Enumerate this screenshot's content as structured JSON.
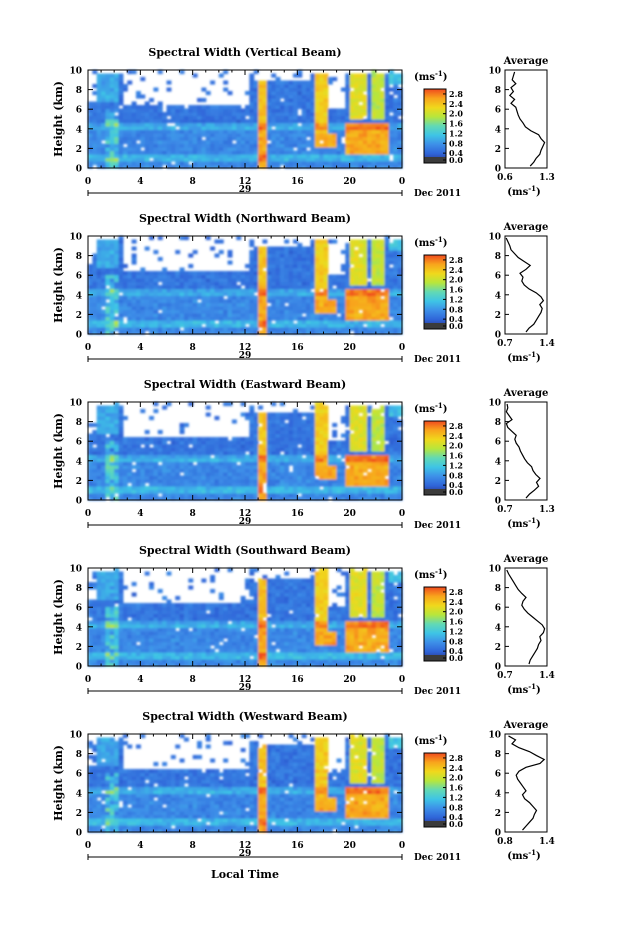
{
  "colorscale": {
    "stops": [
      "#2c2f7e",
      "#2f64d8",
      "#3d8fe8",
      "#3ec4e6",
      "#62d9b4",
      "#b7e63c",
      "#f0d81c",
      "#f8a41c",
      "#f04a1e"
    ],
    "low_color": "#3b3b3b"
  },
  "chart_data": [
    {
      "type": "heatmap",
      "title": "Spectral Width (Vertical Beam)",
      "ylabel": "Height (km)",
      "xlabel": "",
      "unit_label": "(ms",
      "unit_exp": "-1",
      "x_ticks": [
        "0",
        "4",
        "8",
        "12",
        "16",
        "20",
        "0"
      ],
      "xlim": [
        0,
        24
      ],
      "y_ticks": [
        "0",
        "2",
        "4",
        "6",
        "8",
        "10"
      ],
      "ylim": [
        0,
        10
      ],
      "date_day": "29",
      "date_label": "Dec 2011",
      "colorbar_ticks": [
        "0.0",
        "0.4",
        "0.8",
        "1.2",
        "1.6",
        "2.0",
        "2.4",
        "2.8"
      ],
      "colorbar_range": [
        0,
        3
      ],
      "average": {
        "title": "Average",
        "xlabel": "(ms",
        "xlabel_exp": "-1",
        "x_ticks": [
          "0.6",
          "1.3"
        ],
        "xlim": [
          0.6,
          1.3
        ],
        "height": [
          0.2,
          0.6,
          1.0,
          1.4,
          1.8,
          2.2,
          2.6,
          3.0,
          3.4,
          3.8,
          4.2,
          4.6,
          5.0,
          5.4,
          5.8,
          6.2,
          6.6,
          7.0,
          7.4,
          7.8,
          8.2,
          8.6,
          9.0,
          9.4,
          9.8
        ],
        "value": [
          1.02,
          1.08,
          1.12,
          1.18,
          1.2,
          1.23,
          1.26,
          1.2,
          1.16,
          1.03,
          0.94,
          0.9,
          0.85,
          0.82,
          0.8,
          0.78,
          0.7,
          0.76,
          0.68,
          0.74,
          0.7,
          0.78,
          0.72,
          0.74,
          0.76
        ]
      }
    },
    {
      "type": "heatmap",
      "title": "Spectral Width (Northward Beam)",
      "ylabel": "Height (km)",
      "xlabel": "",
      "unit_label": "(ms",
      "unit_exp": "-1",
      "x_ticks": [
        "0",
        "4",
        "8",
        "12",
        "16",
        "20",
        "0"
      ],
      "xlim": [
        0,
        24
      ],
      "y_ticks": [
        "0",
        "2",
        "4",
        "6",
        "8",
        "10"
      ],
      "ylim": [
        0,
        10
      ],
      "date_day": "29",
      "date_label": "Dec 2011",
      "colorbar_ticks": [
        "0.0",
        "0.4",
        "0.8",
        "1.2",
        "1.6",
        "2.0",
        "2.4",
        "2.8"
      ],
      "colorbar_range": [
        0,
        3
      ],
      "average": {
        "title": "Average",
        "xlabel": "(ms",
        "xlabel_exp": "-1",
        "x_ticks": [
          "0.7",
          "1.4"
        ],
        "xlim": [
          0.7,
          1.4
        ],
        "height": [
          0.2,
          0.6,
          1.0,
          1.4,
          1.8,
          2.2,
          2.6,
          3.0,
          3.4,
          3.8,
          4.2,
          4.6,
          5.0,
          5.4,
          5.8,
          6.2,
          6.6,
          7.0,
          7.4,
          7.8,
          8.2,
          8.6,
          9.0,
          9.4,
          9.8
        ],
        "value": [
          1.05,
          1.1,
          1.18,
          1.22,
          1.26,
          1.3,
          1.32,
          1.28,
          1.34,
          1.3,
          1.22,
          1.1,
          1.02,
          0.98,
          1.0,
          0.95,
          1.05,
          1.12,
          1.02,
          0.92,
          0.86,
          0.8,
          0.78,
          0.75,
          0.72
        ]
      }
    },
    {
      "type": "heatmap",
      "title": "Spectral Width (Eastward Beam)",
      "ylabel": "Height (km)",
      "xlabel": "",
      "unit_label": "(ms",
      "unit_exp": "-1",
      "x_ticks": [
        "0",
        "4",
        "8",
        "12",
        "16",
        "20",
        "0"
      ],
      "xlim": [
        0,
        24
      ],
      "y_ticks": [
        "0",
        "2",
        "4",
        "6",
        "8",
        "10"
      ],
      "ylim": [
        0,
        10
      ],
      "date_day": "29",
      "date_label": "Dec 2011",
      "colorbar_ticks": [
        "0.0",
        "0.4",
        "0.8",
        "1.2",
        "1.6",
        "2.0",
        "2.4",
        "2.8"
      ],
      "colorbar_range": [
        0,
        3
      ],
      "average": {
        "title": "Average",
        "xlabel": "(ms",
        "xlabel_exp": "-1",
        "x_ticks": [
          "0.7",
          "1.3"
        ],
        "xlim": [
          0.7,
          1.3
        ],
        "height": [
          0.2,
          0.6,
          1.0,
          1.4,
          1.8,
          2.2,
          2.6,
          3.0,
          3.4,
          3.8,
          4.2,
          4.6,
          5.0,
          5.4,
          5.8,
          6.2,
          6.6,
          7.0,
          7.4,
          7.8,
          8.2,
          8.6,
          9.0,
          9.4,
          9.8
        ],
        "value": [
          1.0,
          1.05,
          1.12,
          1.18,
          1.15,
          1.2,
          1.14,
          1.1,
          1.08,
          1.02,
          0.98,
          0.95,
          0.92,
          0.9,
          0.86,
          0.84,
          0.86,
          0.8,
          0.74,
          0.72,
          0.8,
          0.76,
          0.72,
          0.74,
          0.73
        ]
      }
    },
    {
      "type": "heatmap",
      "title": "Spectral Width (Southward Beam)",
      "ylabel": "Height (km)",
      "xlabel": "",
      "unit_label": "(ms",
      "unit_exp": "-1",
      "x_ticks": [
        "0",
        "4",
        "8",
        "12",
        "16",
        "20",
        "0"
      ],
      "xlim": [
        0,
        24
      ],
      "y_ticks": [
        "0",
        "2",
        "4",
        "6",
        "8",
        "10"
      ],
      "ylim": [
        0,
        10
      ],
      "date_day": "29",
      "date_label": "Dec 2011",
      "colorbar_ticks": [
        "0.0",
        "0.4",
        "0.8",
        "1.2",
        "1.6",
        "2.0",
        "2.4",
        "2.8"
      ],
      "colorbar_range": [
        0,
        3
      ],
      "average": {
        "title": "Average",
        "xlabel": "(ms",
        "xlabel_exp": "-1",
        "x_ticks": [
          "0.7",
          "1.4"
        ],
        "xlim": [
          0.7,
          1.4
        ],
        "height": [
          0.2,
          0.6,
          1.0,
          1.4,
          1.8,
          2.2,
          2.6,
          3.0,
          3.4,
          3.8,
          4.2,
          4.6,
          5.0,
          5.4,
          5.8,
          6.2,
          6.6,
          7.0,
          7.4,
          7.8,
          8.2,
          8.6,
          9.0,
          9.4,
          9.8
        ],
        "value": [
          1.1,
          1.12,
          1.16,
          1.2,
          1.24,
          1.26,
          1.3,
          1.28,
          1.34,
          1.36,
          1.32,
          1.24,
          1.16,
          1.08,
          1.02,
          0.98,
          1.0,
          1.05,
          0.98,
          0.92,
          0.88,
          0.84,
          0.8,
          0.76,
          0.73
        ]
      }
    },
    {
      "type": "heatmap",
      "title": "Spectral Width (Westward Beam)",
      "ylabel": "Height (km)",
      "xlabel": "Local Time",
      "unit_label": "(ms",
      "unit_exp": "-1",
      "x_ticks": [
        "0",
        "4",
        "8",
        "12",
        "16",
        "20",
        "0"
      ],
      "xlim": [
        0,
        24
      ],
      "y_ticks": [
        "0",
        "2",
        "4",
        "6",
        "8",
        "10"
      ],
      "ylim": [
        0,
        10
      ],
      "date_day": "29",
      "date_label": "Dec 2011",
      "colorbar_ticks": [
        "0.0",
        "0.4",
        "0.8",
        "1.2",
        "1.6",
        "2.0",
        "2.4",
        "2.8"
      ],
      "colorbar_range": [
        0,
        3
      ],
      "average": {
        "title": "Average",
        "xlabel": "(ms",
        "xlabel_exp": "-1",
        "x_ticks": [
          "0.8",
          "1.4"
        ],
        "xlim": [
          0.8,
          1.4
        ],
        "height": [
          0.2,
          0.6,
          1.0,
          1.4,
          1.8,
          2.2,
          2.6,
          3.0,
          3.4,
          3.8,
          4.2,
          4.6,
          5.0,
          5.4,
          5.8,
          6.2,
          6.6,
          7.0,
          7.4,
          7.8,
          8.2,
          8.6,
          9.0,
          9.4,
          9.8
        ],
        "value": [
          1.05,
          1.1,
          1.15,
          1.2,
          1.22,
          1.25,
          1.2,
          1.15,
          1.08,
          1.05,
          1.1,
          1.06,
          1.02,
          0.98,
          0.96,
          1.0,
          1.1,
          1.3,
          1.36,
          1.25,
          1.15,
          1.0,
          0.9,
          0.95,
          0.85
        ]
      }
    }
  ]
}
